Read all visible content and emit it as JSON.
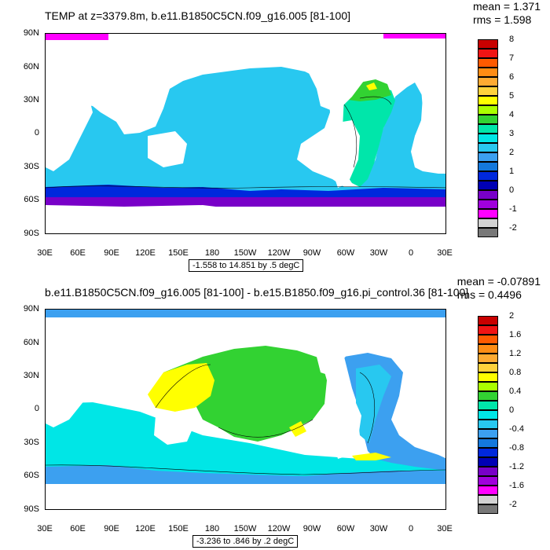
{
  "panels": [
    {
      "title": "TEMP at z=3379.8m, b.e11.B1850C5CN.f09_g16.005 [81-100]",
      "stats": {
        "mean": "mean = 1.371",
        "rms": "rms = 1.598"
      },
      "range_text": "-1.558 to 14.851 by .5 degC",
      "lat_labels": [
        "90N",
        "60N",
        "30N",
        "0",
        "30S",
        "60S",
        "90S"
      ],
      "lon_labels": [
        "30E",
        "60E",
        "90E",
        "120E",
        "150E",
        "180",
        "150W",
        "120W",
        "90W",
        "60W",
        "30W",
        "0",
        "30E"
      ],
      "colorbar_labels": [
        "8",
        "7",
        "6",
        "5",
        "4",
        "3",
        "2",
        "1",
        "0",
        "-1",
        "-2"
      ],
      "colorbar_colors": [
        "#c80000",
        "#f01414",
        "#ff5a00",
        "#ff8c14",
        "#ffaa32",
        "#ffd23c",
        "#ffff00",
        "#aaff00",
        "#32d232",
        "#00e6aa",
        "#00e6e6",
        "#28c8f0",
        "#3ca0f0",
        "#1478dc",
        "#0028dc",
        "#0000b4",
        "#7800c8",
        "#a000dc",
        "#ff00ff",
        "#d2d2d2",
        "#787878"
      ]
    },
    {
      "title": "b.e11.B1850C5CN.f09_g16.005 [81-100] - b.e15.B1850.f09_g16.pi_control.36 [81-100]",
      "stats": {
        "mean": "mean = -0.07891",
        "rms": "rms = 0.4496"
      },
      "range_text": "-3.236 to .846 by .2 degC",
      "lat_labels": [
        "90N",
        "60N",
        "30N",
        "0",
        "30S",
        "60S",
        "90S"
      ],
      "lon_labels": [
        "30E",
        "60E",
        "90E",
        "120E",
        "150E",
        "180",
        "150W",
        "120W",
        "90W",
        "60W",
        "30W",
        "0",
        "30E"
      ],
      "colorbar_labels": [
        "2",
        "1.6",
        "1.2",
        "0.8",
        "0.4",
        "0",
        "-0.4",
        "-0.8",
        "-1.2",
        "-1.6",
        "-2"
      ],
      "colorbar_colors": [
        "#c80000",
        "#f01414",
        "#ff5a00",
        "#ff8c14",
        "#ffaa32",
        "#ffd23c",
        "#ffff00",
        "#aaff00",
        "#32d232",
        "#00e6aa",
        "#00e6e6",
        "#28c8f0",
        "#3ca0f0",
        "#1478dc",
        "#0028dc",
        "#0000b4",
        "#7800c8",
        "#a000dc",
        "#ff00ff",
        "#d2d2d2",
        "#787878"
      ]
    }
  ],
  "legend": {
    "land": "#ffffff",
    "ocean_main": "#28c8f0",
    "ocean_cold": "#3ca0f0",
    "ocean_warm": "#00e6aa",
    "southern_deep": "#0028dc",
    "southern_purple": "#7800c8",
    "arctic_magenta": "#ff00ff",
    "diff_pacific": "#32d232",
    "diff_warm": "#ffff00",
    "diff_atlantic": "#28c8f0"
  }
}
